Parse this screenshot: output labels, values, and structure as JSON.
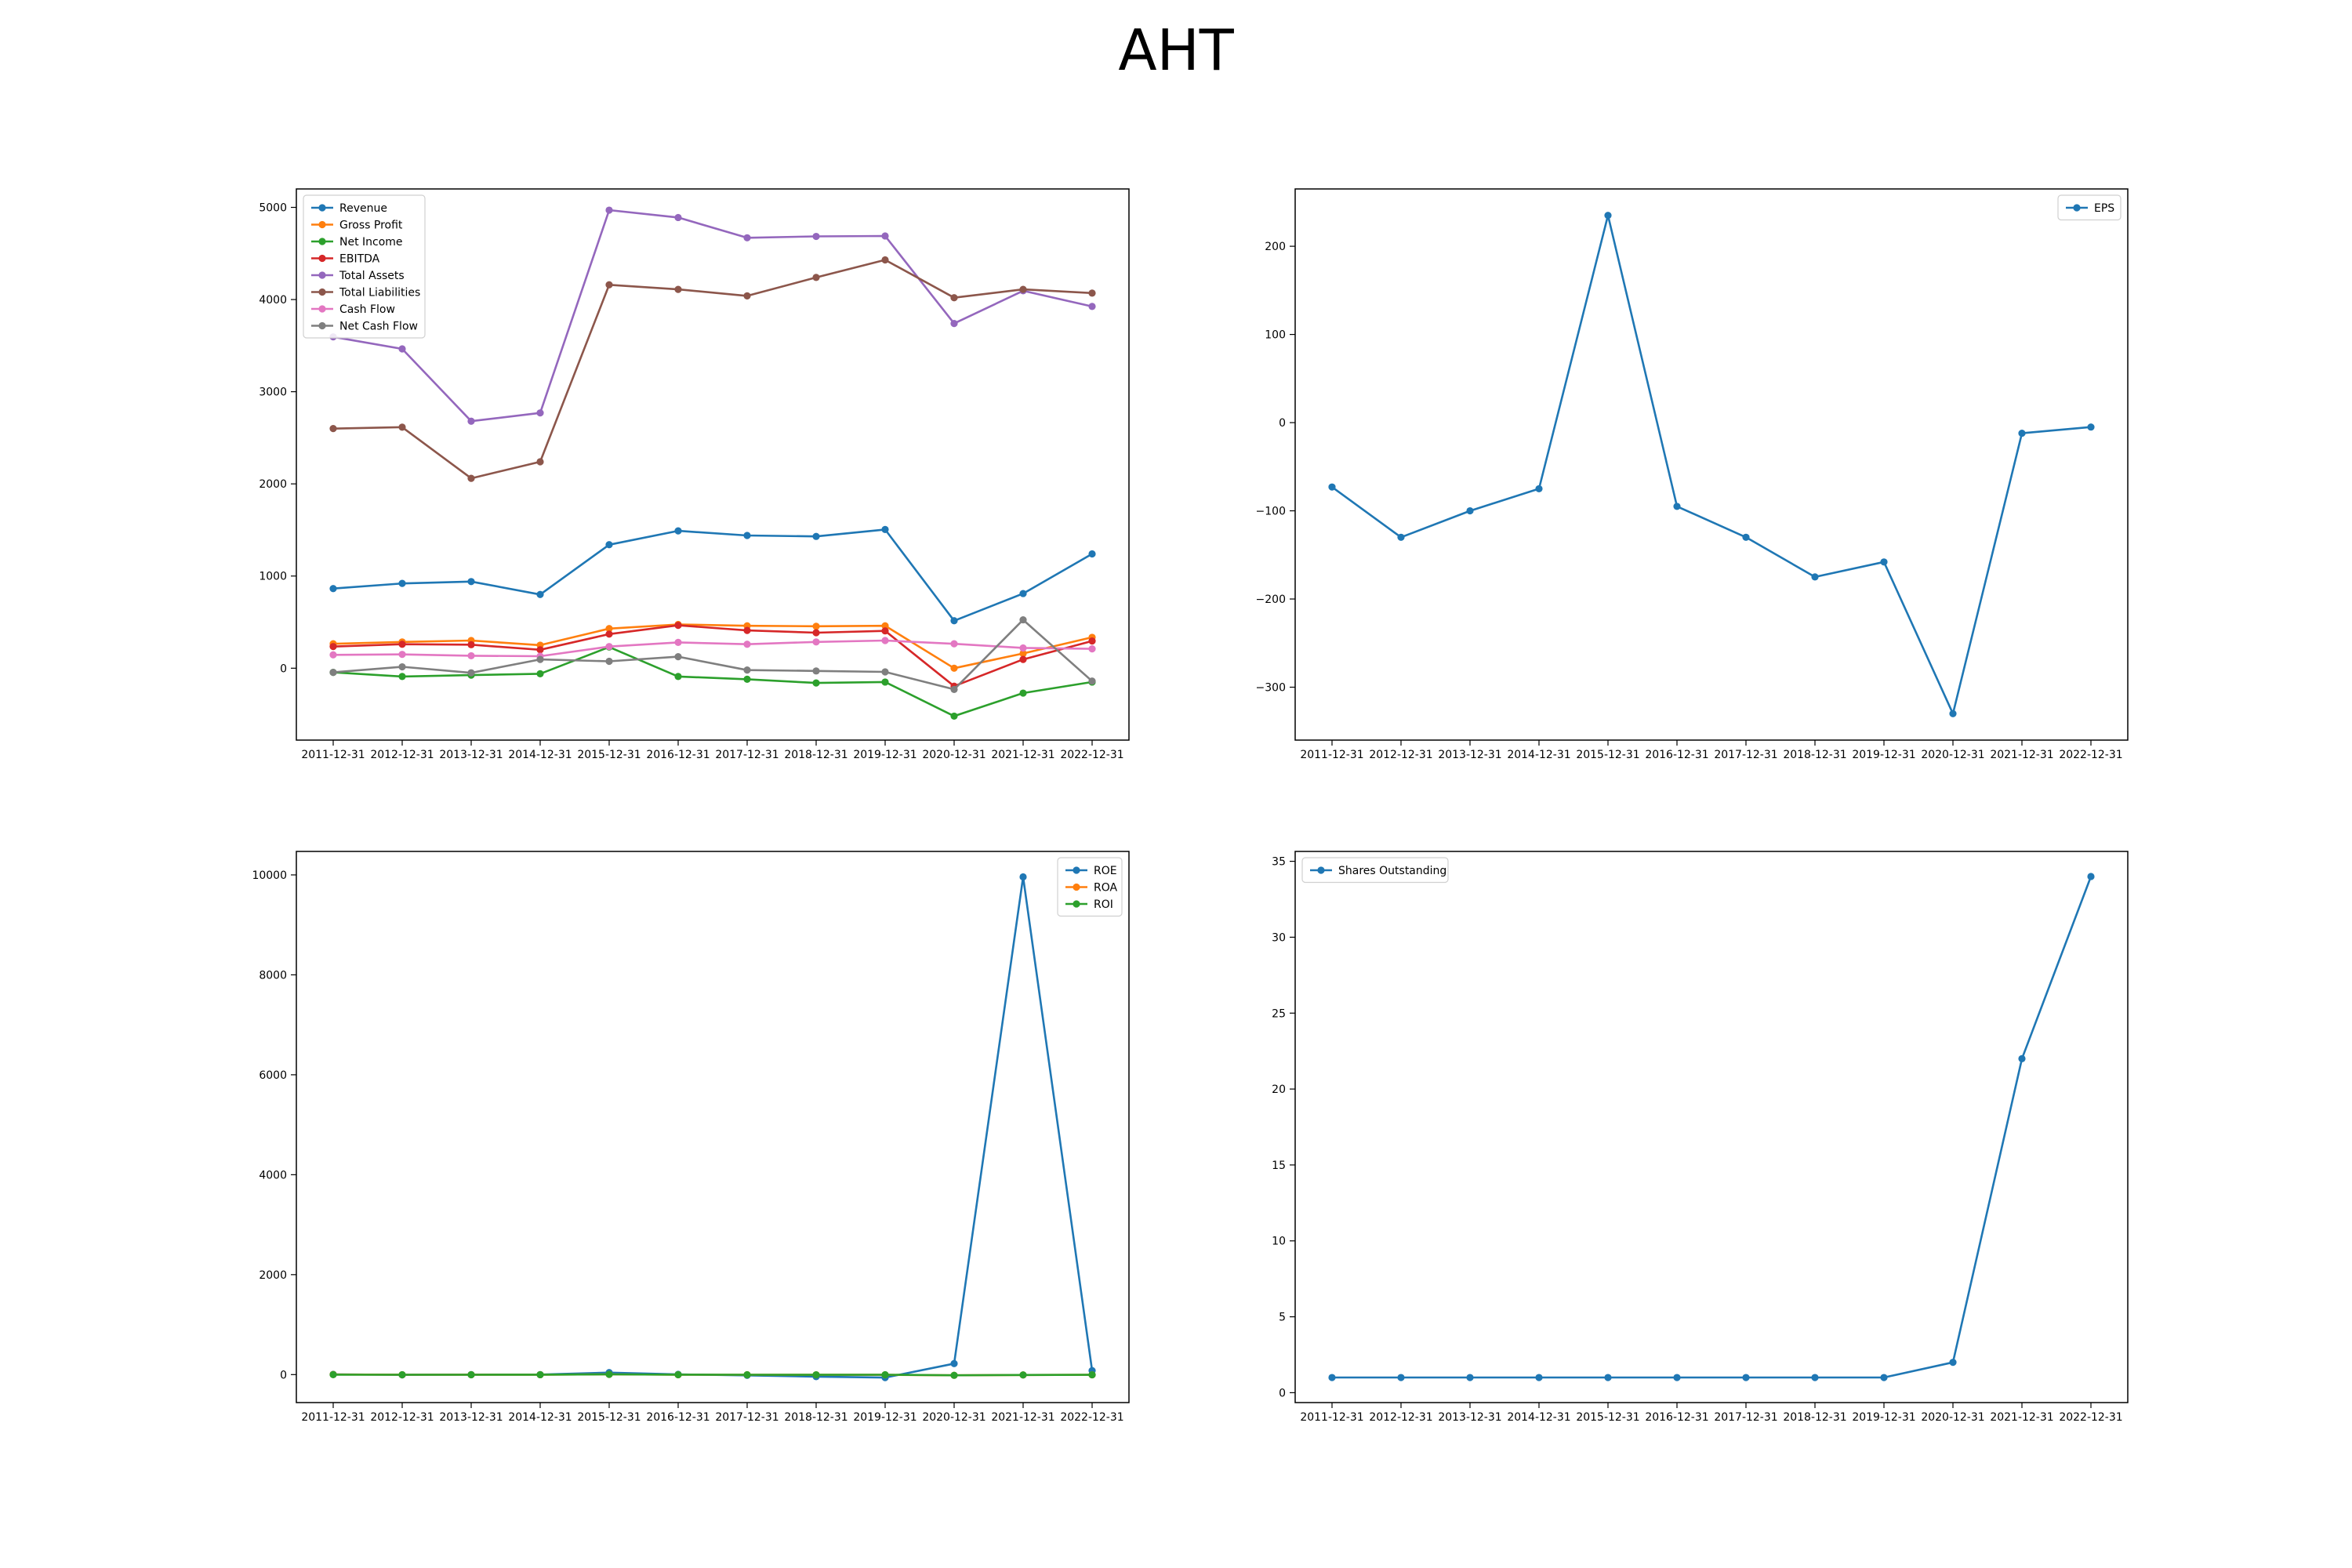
{
  "title": "AHT",
  "chart_data": [
    {
      "type": "line",
      "categories": [
        "2011-12-31",
        "2012-12-31",
        "2013-12-31",
        "2014-12-31",
        "2015-12-31",
        "2016-12-31",
        "2017-12-31",
        "2018-12-31",
        "2019-12-31",
        "2020-12-31",
        "2021-12-31",
        "2022-12-31"
      ],
      "ylim": [
        -780,
        5200
      ],
      "yticks": [
        0,
        1000,
        2000,
        3000,
        4000,
        5000
      ],
      "legend_position": "upper-left",
      "grid": false,
      "series": [
        {
          "name": "Revenue",
          "color": "#1f77b4",
          "values": [
            864,
            920,
            940,
            800,
            1340,
            1490,
            1440,
            1430,
            1505,
            515,
            810,
            1240
          ]
        },
        {
          "name": "Gross Profit",
          "color": "#ff7f0e",
          "values": [
            265,
            285,
            300,
            250,
            430,
            475,
            460,
            455,
            460,
            0,
            160,
            335
          ]
        },
        {
          "name": "Net Income",
          "color": "#2ca02c",
          "values": [
            -45,
            -90,
            -75,
            -60,
            230,
            -90,
            -120,
            -160,
            -150,
            -520,
            -270,
            -150
          ]
        },
        {
          "name": "EBITDA",
          "color": "#d62728",
          "values": [
            235,
            260,
            255,
            200,
            370,
            465,
            410,
            385,
            405,
            -195,
            95,
            295
          ]
        },
        {
          "name": "Total Assets",
          "color": "#9467bd",
          "values": [
            3595,
            3465,
            2680,
            2770,
            4970,
            4890,
            4670,
            4685,
            4690,
            3740,
            4095,
            3925
          ]
        },
        {
          "name": "Total Liabilities",
          "color": "#8c564b",
          "values": [
            2600,
            2615,
            2060,
            2240,
            4160,
            4110,
            4040,
            4240,
            4430,
            4020,
            4110,
            4070
          ]
        },
        {
          "name": "Cash Flow",
          "color": "#e377c2",
          "values": [
            145,
            150,
            135,
            130,
            235,
            280,
            260,
            285,
            300,
            265,
            220,
            210
          ]
        },
        {
          "name": "Net Cash Flow",
          "color": "#7f7f7f",
          "values": [
            -45,
            15,
            -50,
            95,
            75,
            125,
            -20,
            -30,
            -40,
            -230,
            525,
            -140
          ]
        }
      ]
    },
    {
      "type": "line",
      "categories": [
        "2011-12-31",
        "2012-12-31",
        "2013-12-31",
        "2014-12-31",
        "2015-12-31",
        "2016-12-31",
        "2017-12-31",
        "2018-12-31",
        "2019-12-31",
        "2020-12-31",
        "2021-12-31",
        "2022-12-31"
      ],
      "ylim": [
        -360,
        265
      ],
      "yticks": [
        -300,
        -200,
        -100,
        0,
        100,
        200
      ],
      "legend_position": "upper-right",
      "grid": false,
      "series": [
        {
          "name": "EPS",
          "color": "#1f77b4",
          "values": [
            -73,
            -130,
            -100,
            -75,
            235,
            -95,
            -130,
            -175,
            -158,
            -330,
            -12,
            -5
          ]
        }
      ]
    },
    {
      "type": "line",
      "categories": [
        "2011-12-31",
        "2012-12-31",
        "2013-12-31",
        "2014-12-31",
        "2015-12-31",
        "2016-12-31",
        "2017-12-31",
        "2018-12-31",
        "2019-12-31",
        "2020-12-31",
        "2021-12-31",
        "2022-12-31"
      ],
      "ylim": [
        -560,
        10470
      ],
      "yticks": [
        0,
        2000,
        4000,
        6000,
        8000,
        10000
      ],
      "legend_position": "upper-right",
      "grid": false,
      "series": [
        {
          "name": "ROE",
          "color": "#1f77b4",
          "values": [
            5,
            -5,
            0,
            0,
            40,
            5,
            -15,
            -40,
            -60,
            220,
            9960,
            80
          ]
        },
        {
          "name": "ROA",
          "color": "#ff7f0e",
          "values": [
            2,
            -3,
            -2,
            -2,
            5,
            -3,
            -3,
            -4,
            -4,
            -14,
            -7,
            -4
          ]
        },
        {
          "name": "ROI",
          "color": "#2ca02c",
          "values": [
            -1,
            -3,
            -3,
            -2,
            5,
            -2,
            -3,
            -4,
            -3,
            -14,
            -7,
            -4
          ]
        }
      ]
    },
    {
      "type": "line",
      "categories": [
        "2011-12-31",
        "2012-12-31",
        "2013-12-31",
        "2014-12-31",
        "2015-12-31",
        "2016-12-31",
        "2017-12-31",
        "2018-12-31",
        "2019-12-31",
        "2020-12-31",
        "2021-12-31",
        "2022-12-31"
      ],
      "ylim": [
        -0.65,
        35.65
      ],
      "yticks": [
        0,
        5,
        10,
        15,
        20,
        25,
        30,
        35
      ],
      "legend_position": "upper-left",
      "grid": false,
      "series": [
        {
          "name": "Shares Outstanding",
          "color": "#1f77b4",
          "values": [
            1,
            1,
            1,
            1,
            1,
            1,
            1,
            1,
            1,
            2,
            22,
            34
          ]
        }
      ]
    }
  ]
}
